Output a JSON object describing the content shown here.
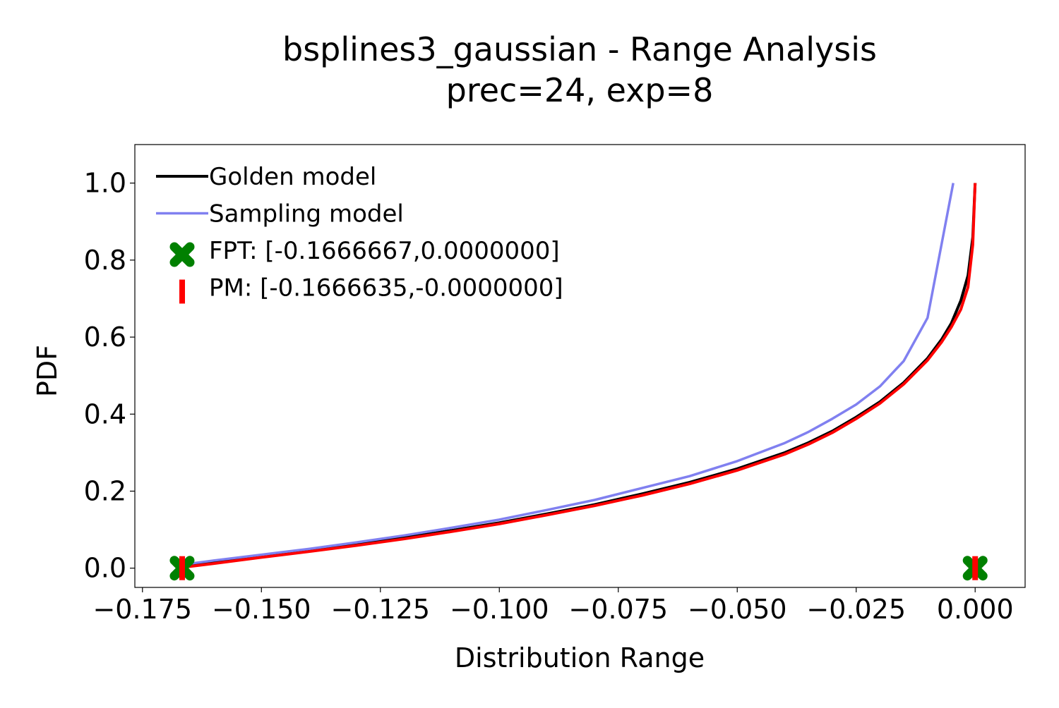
{
  "chart_data": {
    "type": "line",
    "title": "bsplines3_gaussian - Range Analysis",
    "subtitle": "prec=24, exp=8",
    "xlabel": "Distribution Range",
    "ylabel": "PDF",
    "xlim": [
      -0.1766,
      0.0105
    ],
    "ylim": [
      -0.05,
      1.1
    ],
    "x_ticks": [
      -0.175,
      -0.15,
      -0.125,
      -0.1,
      -0.075,
      -0.05,
      -0.025,
      0.0
    ],
    "x_tick_labels": [
      "−0.175",
      "−0.150",
      "−0.125",
      "−0.100",
      "−0.075",
      "−0.050",
      "−0.025",
      "0.000"
    ],
    "y_ticks": [
      0.0,
      0.2,
      0.4,
      0.6,
      0.8,
      1.0
    ],
    "y_tick_labels": [
      "0.0",
      "0.2",
      "0.4",
      "0.6",
      "0.8",
      "1.0"
    ],
    "grid": false,
    "legend_position": "top-left",
    "series": [
      {
        "name": "Golden model",
        "color": "#000000",
        "x": [
          -0.1667,
          -0.16,
          -0.15,
          -0.14,
          -0.13,
          -0.12,
          -0.11,
          -0.1,
          -0.09,
          -0.08,
          -0.07,
          -0.06,
          -0.05,
          -0.04,
          -0.035,
          -0.03,
          -0.025,
          -0.02,
          -0.015,
          -0.01,
          -0.007,
          -0.005,
          -0.003,
          -0.0015,
          -0.0005,
          0.0
        ],
        "y": [
          0.005,
          0.015,
          0.031,
          0.046,
          0.062,
          0.079,
          0.098,
          0.118,
          0.141,
          0.165,
          0.193,
          0.223,
          0.258,
          0.3,
          0.326,
          0.356,
          0.392,
          0.432,
          0.482,
          0.545,
          0.595,
          0.636,
          0.695,
          0.76,
          0.86,
          1.0
        ]
      },
      {
        "name": "Sampling model",
        "color": "#8080f0",
        "x": [
          -0.1667,
          -0.16,
          -0.15,
          -0.14,
          -0.13,
          -0.12,
          -0.11,
          -0.1,
          -0.09,
          -0.08,
          -0.07,
          -0.06,
          -0.05,
          -0.04,
          -0.035,
          -0.03,
          -0.025,
          -0.02,
          -0.015,
          -0.01,
          -0.0046
        ],
        "y": [
          0.009,
          0.02,
          0.035,
          0.05,
          0.067,
          0.085,
          0.105,
          0.126,
          0.151,
          0.177,
          0.208,
          0.239,
          0.278,
          0.325,
          0.354,
          0.388,
          0.425,
          0.472,
          0.538,
          0.65,
          1.0
        ]
      },
      {
        "name": "PM",
        "color": "#ff0000",
        "x": [
          -0.1666635,
          -0.16,
          -0.15,
          -0.14,
          -0.13,
          -0.12,
          -0.11,
          -0.1,
          -0.09,
          -0.08,
          -0.07,
          -0.06,
          -0.05,
          -0.04,
          -0.035,
          -0.03,
          -0.025,
          -0.02,
          -0.015,
          -0.01,
          -0.007,
          -0.005,
          -0.003,
          -0.0015,
          -0.0005,
          0.0
        ],
        "y": [
          0.002,
          0.012,
          0.028,
          0.043,
          0.059,
          0.076,
          0.095,
          0.115,
          0.138,
          0.162,
          0.189,
          0.219,
          0.254,
          0.296,
          0.322,
          0.352,
          0.388,
          0.428,
          0.478,
          0.54,
          0.588,
          0.626,
          0.672,
          0.73,
          0.84,
          1.0
        ]
      }
    ],
    "markers": [
      {
        "name": "FPT: [-0.1666667,0.0000000]",
        "shape": "X",
        "color": "#008000",
        "x": [
          -0.1666667,
          0.0
        ],
        "y": [
          0.0,
          0.0
        ]
      },
      {
        "name": "PM: [-0.1666635,-0.0000000]",
        "shape": "|",
        "color": "#ff0000",
        "x": [
          -0.1666635,
          0.0
        ],
        "y": [
          0.0,
          0.0
        ]
      }
    ]
  }
}
